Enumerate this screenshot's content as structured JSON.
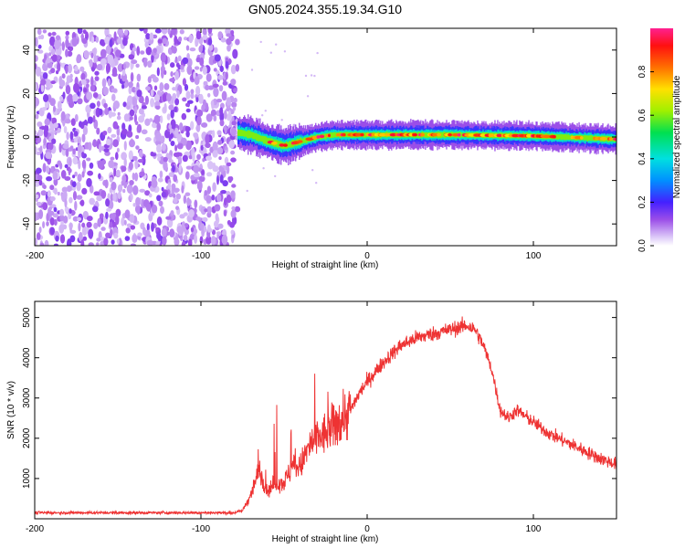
{
  "figure_title": "GN05.2024.355.19.34.G10",
  "chart_data": [
    {
      "type": "heatmap",
      "xlabel": "Height of straight line (km)",
      "ylabel": "Frequency (Hz)",
      "xlim": [
        -200,
        150
      ],
      "ylim": [
        -50,
        50
      ],
      "xticks": [
        -200,
        -100,
        0,
        100
      ],
      "yticks": [
        -40,
        -20,
        0,
        20,
        40
      ],
      "colorbar": {
        "label": "Normalized spectral amplitude",
        "range": [
          0,
          1
        ],
        "ticks": [
          0.0,
          0.2,
          0.4,
          0.6,
          0.8
        ]
      },
      "regions": [
        {
          "x_range": [
            -200,
            -78
          ],
          "description": "broadband noise, amplitude ~0.05-0.15 across all frequencies"
        },
        {
          "x_range": [
            -78,
            150
          ],
          "description": "narrow tone near 0 Hz, amplitude up to ~1.0"
        }
      ],
      "tone_track": {
        "x": [
          -78,
          -70,
          -60,
          -50,
          -40,
          -30,
          -20,
          0,
          50,
          100,
          150
        ],
        "frequency": [
          2,
          1,
          -2,
          -4,
          -2,
          0,
          1,
          1,
          1,
          0.5,
          -1
        ]
      }
    },
    {
      "type": "line",
      "xlabel": "Height of straight line (km)",
      "ylabel": "SNR (10 * v/v)",
      "xlim": [
        -200,
        150
      ],
      "ylim": [
        0,
        5400
      ],
      "xticks": [
        -200,
        -100,
        0,
        100
      ],
      "yticks": [
        1000,
        2000,
        3000,
        4000,
        5000
      ],
      "series": [
        {
          "color": "#ee3333",
          "x": [
            -200,
            -150,
            -100,
            -80,
            -75,
            -70,
            -65,
            -60,
            -55,
            -50,
            -45,
            -40,
            -35,
            -30,
            -25,
            -20,
            -15,
            -10,
            -5,
            0,
            10,
            20,
            30,
            40,
            50,
            60,
            65,
            70,
            75,
            80,
            85,
            90,
            100,
            110,
            120,
            130,
            140,
            150
          ],
          "y": [
            150,
            150,
            150,
            150,
            200,
            600,
            1200,
            700,
            900,
            900,
            1300,
            1300,
            1800,
            2000,
            2100,
            2300,
            2500,
            2700,
            3100,
            3400,
            3900,
            4300,
            4500,
            4600,
            4700,
            4800,
            4700,
            4300,
            3700,
            2700,
            2500,
            2700,
            2400,
            2100,
            1900,
            1700,
            1500,
            1350
          ]
        }
      ]
    }
  ]
}
